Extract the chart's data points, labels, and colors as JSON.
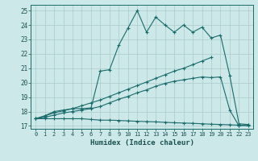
{
  "xlabel": "Humidex (Indice chaleur)",
  "xlim": [
    -0.5,
    23.5
  ],
  "ylim": [
    16.8,
    25.4
  ],
  "yticks": [
    17,
    18,
    19,
    20,
    21,
    22,
    23,
    24,
    25
  ],
  "xticks": [
    0,
    1,
    2,
    3,
    4,
    5,
    6,
    7,
    8,
    9,
    10,
    11,
    12,
    13,
    14,
    15,
    16,
    17,
    18,
    19,
    20,
    21,
    22,
    23
  ],
  "bg_color": "#cce8e8",
  "grid_color": "#aacccc",
  "line_color": "#1a6b6b",
  "lines": [
    {
      "x": [
        0,
        1,
        2,
        3,
        4,
        5,
        6,
        7,
        8,
        9,
        10,
        11,
        12,
        13,
        14,
        15,
        16,
        17,
        18,
        19,
        20,
        21,
        22,
        23
      ],
      "y": [
        17.5,
        17.7,
        18.0,
        18.1,
        18.2,
        18.2,
        18.25,
        20.8,
        20.9,
        22.6,
        23.8,
        25.0,
        23.5,
        24.55,
        24.0,
        23.5,
        24.0,
        23.5,
        23.85,
        23.1,
        23.3,
        20.5,
        17.15,
        17.1
      ]
    },
    {
      "x": [
        0,
        1,
        2,
        3,
        4,
        5,
        6,
        7,
        8,
        9,
        10,
        11,
        12,
        13,
        14,
        15,
        16,
        17,
        18,
        19
      ],
      "y": [
        17.5,
        17.7,
        17.9,
        18.05,
        18.2,
        18.4,
        18.6,
        18.8,
        19.05,
        19.3,
        19.55,
        19.8,
        20.05,
        20.3,
        20.55,
        20.8,
        21.0,
        21.25,
        21.5,
        21.75
      ]
    },
    {
      "x": [
        0,
        1,
        2,
        3,
        4,
        5,
        6,
        7,
        8,
        9,
        10,
        11,
        12,
        13,
        14,
        15,
        16,
        17,
        18,
        19,
        20,
        21,
        22,
        23
      ],
      "y": [
        17.5,
        17.6,
        17.75,
        17.9,
        18.0,
        18.1,
        18.2,
        18.35,
        18.6,
        18.85,
        19.05,
        19.3,
        19.5,
        19.75,
        19.95,
        20.1,
        20.2,
        20.3,
        20.4,
        20.35,
        20.4,
        18.1,
        17.0,
        17.1
      ]
    },
    {
      "x": [
        0,
        1,
        2,
        3,
        4,
        5,
        6,
        7,
        8,
        9,
        10,
        11,
        12,
        13,
        14,
        15,
        16,
        17,
        18,
        19,
        20,
        21,
        22,
        23
      ],
      "y": [
        17.5,
        17.5,
        17.5,
        17.5,
        17.5,
        17.5,
        17.45,
        17.4,
        17.4,
        17.38,
        17.35,
        17.32,
        17.3,
        17.28,
        17.25,
        17.22,
        17.2,
        17.18,
        17.15,
        17.12,
        17.1,
        17.08,
        17.05,
        17.0
      ]
    }
  ]
}
